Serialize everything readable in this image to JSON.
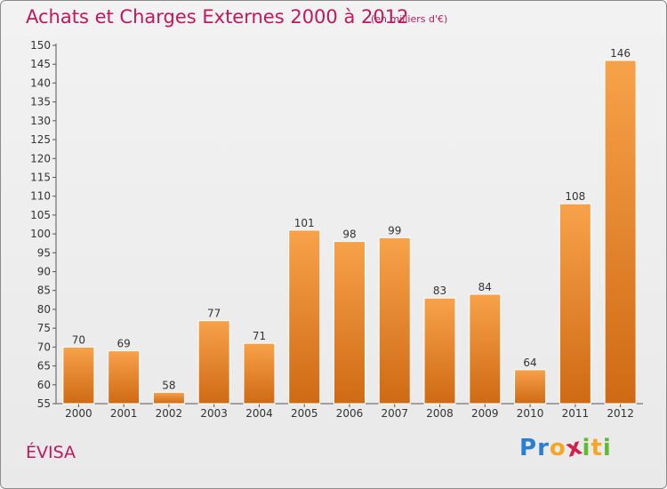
{
  "title": "Achats et Charges Externes 2000 à 2012",
  "subtitle": "(en milliers d'€)",
  "city": "ÉVISA",
  "logo": {
    "letters": [
      "P",
      "r",
      "o",
      "x",
      "i",
      "t",
      "i"
    ],
    "colors": [
      "#2a7fd4",
      "#2a7fd4",
      "#f5a623",
      "#d61e4e",
      "#62b936",
      "#f5a623",
      "#62b936"
    ]
  },
  "colors": {
    "bar_top": "#f7a24a",
    "bar_bottom": "#cf6a14",
    "title": "#c2185b"
  },
  "chart_data": {
    "type": "bar",
    "categories": [
      "2000",
      "2001",
      "2002",
      "2003",
      "2004",
      "2005",
      "2006",
      "2007",
      "2008",
      "2009",
      "2010",
      "2011",
      "2012"
    ],
    "values": [
      70,
      69,
      58,
      77,
      71,
      101,
      98,
      99,
      83,
      84,
      64,
      108,
      146
    ],
    "ylim": [
      55,
      150
    ],
    "yticks": [
      55,
      60,
      65,
      70,
      75,
      80,
      85,
      90,
      95,
      100,
      105,
      110,
      115,
      120,
      125,
      130,
      135,
      140,
      145,
      150
    ],
    "grid": false,
    "data_labels": true
  }
}
